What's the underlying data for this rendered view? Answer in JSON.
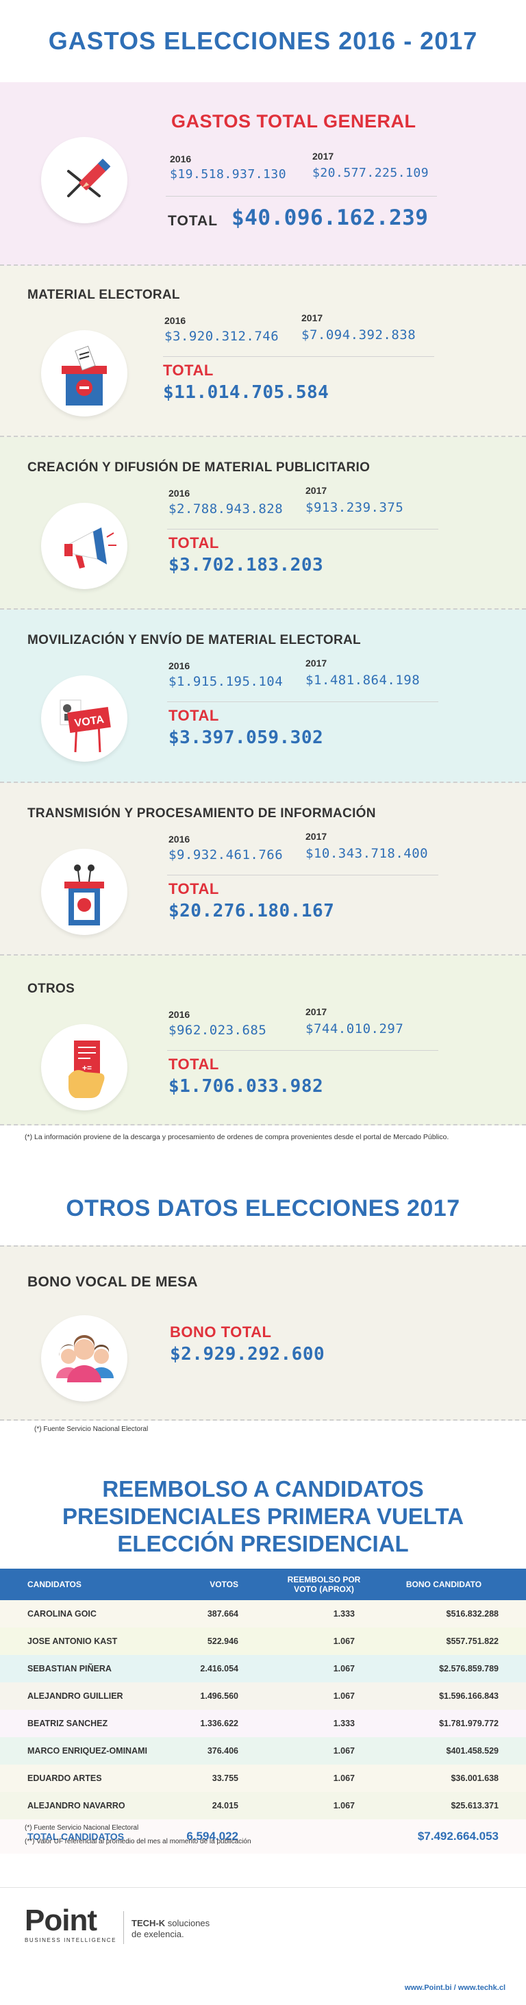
{
  "title": "GASTOS ELECCIONES 2016 - 2017",
  "general": {
    "title": "GASTOS TOTAL GENERAL",
    "year_a": "2016",
    "value_a": "$19.518.937.130",
    "year_b": "2017",
    "value_b": "$20.577.225.109",
    "total_label": "TOTAL",
    "total_value": "$40.096.162.239"
  },
  "sections": [
    {
      "label": "MATERIAL ELECTORAL",
      "y2016": "2016",
      "v2016": "$3.920.312.746",
      "y2017": "2017",
      "v2017": "$7.094.392.838",
      "total_label": "TOTAL",
      "total": "$11.014.705.584",
      "icon": "ballot-box-icon"
    },
    {
      "label": "CREACIÓN Y DIFUSIÓN DE MATERIAL PUBLICITARIO",
      "y2016": "2016",
      "v2016": "$2.788.943.828",
      "y2017": "2017",
      "v2017": "$913.239.375",
      "total_label": "TOTAL",
      "total": "$3.702.183.203",
      "icon": "megaphone-icon"
    },
    {
      "label": "MOVILIZACIÓN Y ENVÍO DE MATERIAL ELECTORAL",
      "y2016": "2016",
      "v2016": "$1.915.195.104",
      "y2017": "2017",
      "v2017": "$1.481.864.198",
      "total_label": "TOTAL",
      "total": "$3.397.059.302",
      "icon": "vota-sign-icon",
      "sign_text": "VOTA"
    },
    {
      "label": "TRANSMISIÓN Y PROCESAMIENTO DE INFORMACIÓN",
      "y2016": "2016",
      "v2016": "$9.932.461.766",
      "y2017": "2017",
      "v2017": "$10.343.718.400",
      "total_label": "TOTAL",
      "total": "$20.276.180.167",
      "icon": "podium-icon"
    },
    {
      "label": "OTROS",
      "y2016": "2016",
      "v2016": "$962.023.685",
      "y2017": "2017",
      "v2017": "$744.010.297",
      "total_label": "TOTAL",
      "total": "$1.706.033.982",
      "icon": "receipt-hand-icon"
    }
  ],
  "note1": "(*) La información proviene de la descarga y procesamiento de ordenes de compra provenientes desde el portal de Mercado Público.",
  "otros_title": "OTROS DATOS ELECCIONES 2017",
  "bono": {
    "label": "BONO VOCAL DE MESA",
    "total_label": "BONO TOTAL",
    "total": "$2.929.292.600",
    "icon": "people-icon"
  },
  "note2": "(*) Fuente Servicio Nacional Electoral",
  "reembolso_title": [
    "REEMBOLSO A CANDIDATOS",
    "PRESIDENCIALES PRIMERA VUELTA",
    "ELECCIÓN PRESIDENCIAL"
  ],
  "table": {
    "headers": [
      "CANDIDATOS",
      "VOTOS",
      "REEMBOLSO POR VOTO (APROX)",
      "BONO CANDIDATO"
    ],
    "rows": [
      [
        "CAROLINA GOIC",
        "387.664",
        "1.333",
        "$516.832.288"
      ],
      [
        "JOSE ANTONIO KAST",
        "522.946",
        "1.067",
        "$557.751.822"
      ],
      [
        "SEBASTIAN PIÑERA",
        "2.416.054",
        "1.067",
        "$2.576.859.789"
      ],
      [
        "ALEJANDRO GUILLIER",
        "1.496.560",
        "1.067",
        "$1.596.166.843"
      ],
      [
        "BEATRIZ SANCHEZ",
        "1.336.622",
        "1.333",
        "$1.781.979.772"
      ],
      [
        "MARCO ENRIQUEZ-OMINAMI",
        "376.406",
        "1.067",
        "$401.458.529"
      ],
      [
        "EDUARDO ARTES",
        "33.755",
        "1.067",
        "$36.001.638"
      ],
      [
        "ALEJANDRO NAVARRO",
        "24.015",
        "1.067",
        "$25.613.371"
      ]
    ],
    "total": [
      "TOTAL CANDIDATOS",
      "6.594.022",
      "",
      "$7.492.664.053"
    ],
    "row_colors": [
      "#f9f7ed",
      "#f5f8e6",
      "#e5f4f3",
      "#f6f4ed",
      "#faf4fa",
      "#eaf5ef",
      "#f9f7ed",
      "#f4f6e9"
    ],
    "total_color": "#fdf9f9"
  },
  "note3": "(*) Fuente Servicio Nacional Electoral",
  "note4": "(**) Valor UF referencial al promedio del mes al momento de la publicación",
  "footer": {
    "logo": "Point",
    "logo_sub": "BUSINESS INTELLIGENCE",
    "brand": "TECH-K",
    "brand_text": " soluciones",
    "brand_text2": "de exelencia.",
    "links": "www.Point.bi / www.techk.cl"
  },
  "colors": {
    "blue": "#2f6fb6",
    "red": "#e0313b",
    "bg_general": "#f7ebf5",
    "bg_material": "#f4f3ea",
    "bg_creacion": "#eef3e5",
    "bg_movilizacion": "#e2f3f2",
    "bg_transmision": "#f3f2ea",
    "bg_otros": "#eff4e4",
    "bg_bono": "#f3f2ea"
  }
}
